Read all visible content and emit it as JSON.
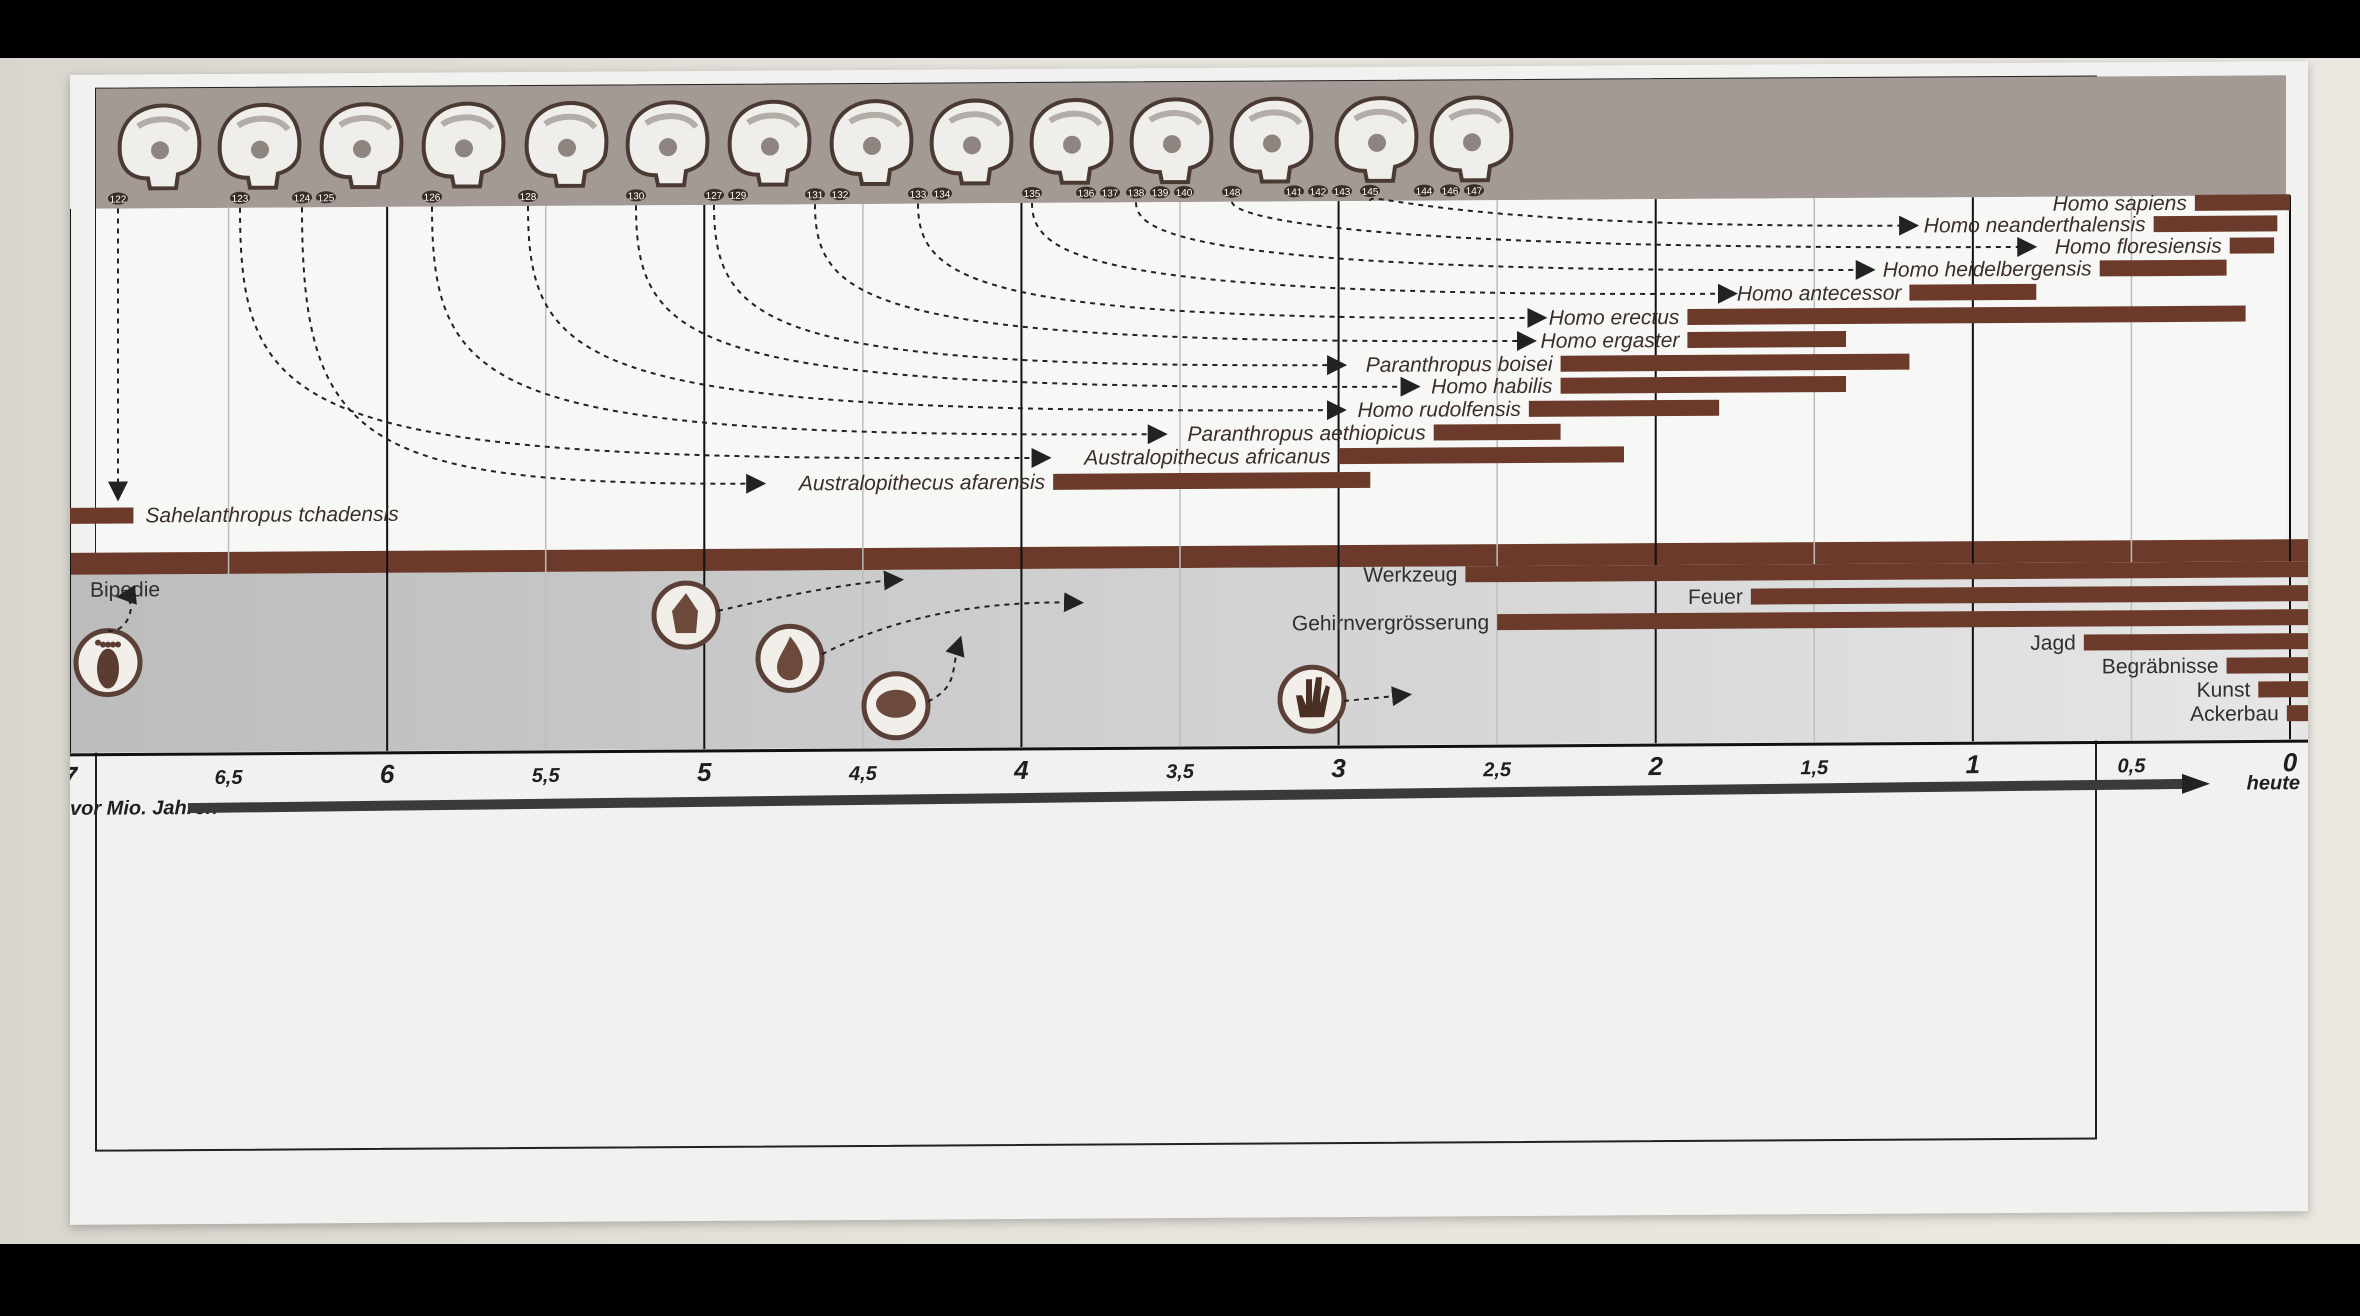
{
  "species": [
    {
      "name": "Homo sapiens",
      "start": 0.3,
      "end": 0
    },
    {
      "name": "Homo neanderthalensis",
      "start": 0.43,
      "end": 0.04
    },
    {
      "name": "Homo floresiensis",
      "start": 0.19,
      "end": 0.05
    },
    {
      "name": "Homo heidelbergensis",
      "start": 0.6,
      "end": 0.2
    },
    {
      "name": "Homo antecessor",
      "start": 1.2,
      "end": 0.8
    },
    {
      "name": "Homo erectus",
      "start": 1.9,
      "end": 0.14
    },
    {
      "name": "Homo ergaster",
      "start": 1.9,
      "end": 1.4
    },
    {
      "name": "Paranthropus boisei",
      "start": 2.3,
      "end": 1.2
    },
    {
      "name": "Homo habilis",
      "start": 2.3,
      "end": 1.4
    },
    {
      "name": "Homo rudolfensis",
      "start": 2.4,
      "end": 1.8
    },
    {
      "name": "Paranthropus aethiopicus",
      "start": 2.7,
      "end": 2.3
    },
    {
      "name": "Australopithecus africanus",
      "start": 3.0,
      "end": 2.1
    },
    {
      "name": "Australopithecus afarensis",
      "start": 3.9,
      "end": 2.9
    },
    {
      "name": "Sahelanthropus tchadensis",
      "start": 7.0,
      "end": 6.8
    }
  ],
  "features": [
    {
      "name": "Bipedie"
    },
    {
      "name": "Werkzeug",
      "start": 2.6,
      "end": 0
    },
    {
      "name": "Feuer",
      "start": 1.7,
      "end": 0
    },
    {
      "name": "Gehirnvergrösserung",
      "start": 2.5,
      "end": 0
    },
    {
      "name": "Jagd",
      "start": 0.65,
      "end": 0
    },
    {
      "name": "Begräbnisse",
      "start": 0.2,
      "end": 0
    },
    {
      "name": "Kunst",
      "start": 0.1,
      "end": 0
    },
    {
      "name": "Ackerbau",
      "start": 0.01,
      "end": 0
    }
  ],
  "axis": {
    "ticks": [
      "7",
      "6,5",
      "6",
      "5,5",
      "5",
      "4,5",
      "4",
      "3,5",
      "3",
      "2,5",
      "2",
      "1,5",
      "1",
      "0,5",
      "0"
    ],
    "left_label": "vor Mio. Jahren",
    "right_label": "heute"
  },
  "skull_numbers": [
    "122",
    "123",
    "124",
    "125",
    "126",
    "128",
    "130",
    "127",
    "129",
    "131",
    "132",
    "133",
    "134",
    "135",
    "136",
    "137",
    "138",
    "139",
    "140",
    "148",
    "141",
    "142",
    "143",
    "145",
    "144",
    "146",
    "147"
  ],
  "colors": {
    "bar": "#6b3a2a",
    "band": "#a39a95",
    "skull": "#f0eeea",
    "panel": "#f1f1f0"
  },
  "icons": [
    "footprint-icon",
    "hand-axe-icon",
    "flame-icon",
    "brain-icon",
    "handprint-icon"
  ]
}
